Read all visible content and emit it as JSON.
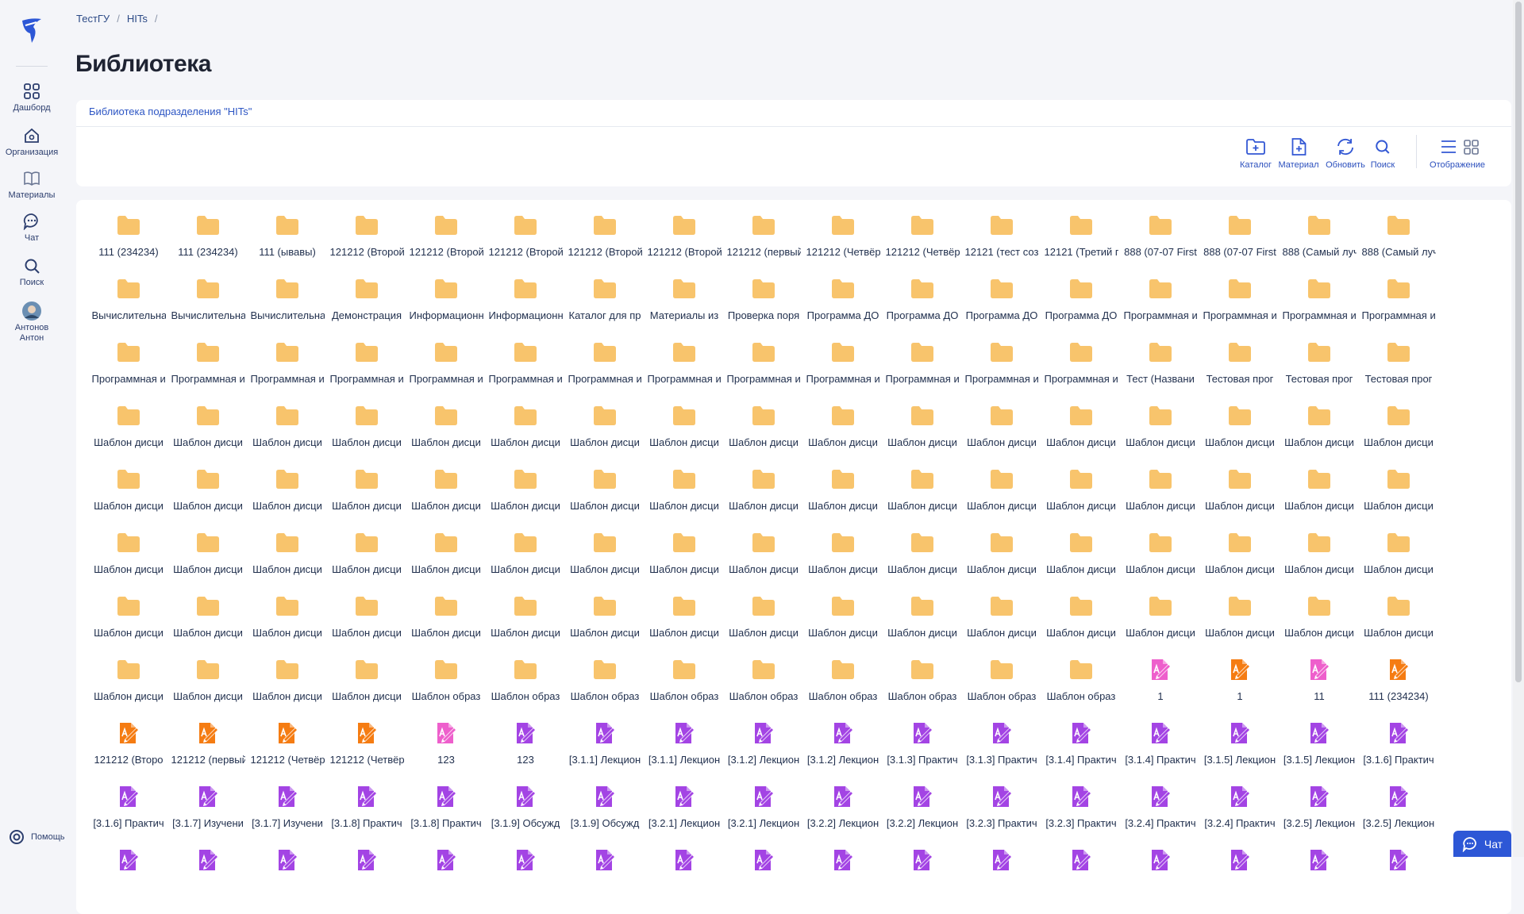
{
  "sidebar": {
    "nav": [
      "Дашборд",
      "Организация",
      "Материалы",
      "Чат",
      "Поиск"
    ],
    "user": [
      "Антонов",
      "Антон"
    ],
    "help": "Помощь"
  },
  "breadcrumbs": {
    "items": [
      "ТестГУ",
      "HITs"
    ],
    "separator": "/"
  },
  "header": {
    "title": "Библиотека"
  },
  "panel": {
    "tab": "Библиотека подразделения \"HITs\"",
    "toolbar": [
      "Каталог",
      "Материал",
      "Обновить",
      "Поиск"
    ],
    "view": "Отображение"
  },
  "icon_colors": {
    "folder": "#f8c46c",
    "p": "#f57c12",
    "d": "#ee5fcc",
    "az": "#a344e4"
  },
  "items": [
    {
      "kind": "folder",
      "label": "111 (234234)"
    },
    {
      "kind": "folder",
      "label": "111 (234234)"
    },
    {
      "kind": "folder",
      "label": "111 (ывавы)"
    },
    {
      "kind": "folder",
      "label": "121212 (Второй"
    },
    {
      "kind": "folder",
      "label": "121212 (Второй"
    },
    {
      "kind": "folder",
      "label": "121212 (Второй"
    },
    {
      "kind": "folder",
      "label": "121212 (Второй"
    },
    {
      "kind": "folder",
      "label": "121212 (Второй"
    },
    {
      "kind": "folder",
      "label": "121212 (первый"
    },
    {
      "kind": "folder",
      "label": "121212 (Четвёр"
    },
    {
      "kind": "folder",
      "label": "121212 (Четвёр"
    },
    {
      "kind": "folder",
      "label": "12121 (тест соз"
    },
    {
      "kind": "folder",
      "label": "12121 (Третий г"
    },
    {
      "kind": "folder",
      "label": "888 (07-07 First"
    },
    {
      "kind": "folder",
      "label": "888 (07-07 First"
    },
    {
      "kind": "folder",
      "label": "888 (Самый луч"
    },
    {
      "kind": "folder",
      "label": "888 (Самый луч"
    },
    {
      "kind": "folder",
      "label": "Вычислительна"
    },
    {
      "kind": "folder",
      "label": "Вычислительна"
    },
    {
      "kind": "folder",
      "label": "Вычислительна"
    },
    {
      "kind": "folder",
      "label": "Демонстрация"
    },
    {
      "kind": "folder",
      "label": "Информационн"
    },
    {
      "kind": "folder",
      "label": "Информационн"
    },
    {
      "kind": "folder",
      "label": "Каталог для пр"
    },
    {
      "kind": "folder",
      "label": "Материалы из"
    },
    {
      "kind": "folder",
      "label": "Проверка поря"
    },
    {
      "kind": "folder",
      "label": "Программа ДО"
    },
    {
      "kind": "folder",
      "label": "Программа ДО"
    },
    {
      "kind": "folder",
      "label": "Программа ДО"
    },
    {
      "kind": "folder",
      "label": "Программа ДО"
    },
    {
      "kind": "folder",
      "label": "Программная и"
    },
    {
      "kind": "folder",
      "label": "Программная и"
    },
    {
      "kind": "folder",
      "label": "Программная и"
    },
    {
      "kind": "folder",
      "label": "Программная и"
    },
    {
      "kind": "folder",
      "label": "Программная и"
    },
    {
      "kind": "folder",
      "label": "Программная и"
    },
    {
      "kind": "folder",
      "label": "Программная и"
    },
    {
      "kind": "folder",
      "label": "Программная и"
    },
    {
      "kind": "folder",
      "label": "Программная и"
    },
    {
      "kind": "folder",
      "label": "Программная и"
    },
    {
      "kind": "folder",
      "label": "Программная и"
    },
    {
      "kind": "folder",
      "label": "Программная и"
    },
    {
      "kind": "folder",
      "label": "Программная и"
    },
    {
      "kind": "folder",
      "label": "Программная и"
    },
    {
      "kind": "folder",
      "label": "Программная и"
    },
    {
      "kind": "folder",
      "label": "Программная и"
    },
    {
      "kind": "folder",
      "label": "Программная и"
    },
    {
      "kind": "folder",
      "label": "Тест (Названи"
    },
    {
      "kind": "folder",
      "label": "Тестовая прог"
    },
    {
      "kind": "folder",
      "label": "Тестовая прог"
    },
    {
      "kind": "folder",
      "label": "Тестовая прог"
    },
    {
      "kind": "folder",
      "label": "Шаблон дисци"
    },
    {
      "kind": "folder",
      "label": "Шаблон дисци"
    },
    {
      "kind": "folder",
      "label": "Шаблон дисци"
    },
    {
      "kind": "folder",
      "label": "Шаблон дисци"
    },
    {
      "kind": "folder",
      "label": "Шаблон дисци"
    },
    {
      "kind": "folder",
      "label": "Шаблон дисци"
    },
    {
      "kind": "folder",
      "label": "Шаблон дисци"
    },
    {
      "kind": "folder",
      "label": "Шаблон дисци"
    },
    {
      "kind": "folder",
      "label": "Шаблон дисци"
    },
    {
      "kind": "folder",
      "label": "Шаблон дисци"
    },
    {
      "kind": "folder",
      "label": "Шаблон дисци"
    },
    {
      "kind": "folder",
      "label": "Шаблон дисци"
    },
    {
      "kind": "folder",
      "label": "Шаблон дисци"
    },
    {
      "kind": "folder",
      "label": "Шаблон дисци"
    },
    {
      "kind": "folder",
      "label": "Шаблон дисци"
    },
    {
      "kind": "folder",
      "label": "Шаблон дисци"
    },
    {
      "kind": "folder",
      "label": "Шаблон дисци"
    },
    {
      "kind": "folder",
      "label": "Шаблон дисци"
    },
    {
      "kind": "folder",
      "label": "Шаблон дисци"
    },
    {
      "kind": "folder",
      "label": "Шаблон дисци"
    },
    {
      "kind": "folder",
      "label": "Шаблон дисци"
    },
    {
      "kind": "folder",
      "label": "Шаблон дисци"
    },
    {
      "kind": "folder",
      "label": "Шаблон дисци"
    },
    {
      "kind": "folder",
      "label": "Шаблон дисци"
    },
    {
      "kind": "folder",
      "label": "Шаблон дисци"
    },
    {
      "kind": "folder",
      "label": "Шаблон дисци"
    },
    {
      "kind": "folder",
      "label": "Шаблон дисци"
    },
    {
      "kind": "folder",
      "label": "Шаблон дисци"
    },
    {
      "kind": "folder",
      "label": "Шаблон дисци"
    },
    {
      "kind": "folder",
      "label": "Шаблон дисци"
    },
    {
      "kind": "folder",
      "label": "Шаблон дисци"
    },
    {
      "kind": "folder",
      "label": "Шаблон дисци"
    },
    {
      "kind": "folder",
      "label": "Шаблон дисци"
    },
    {
      "kind": "folder",
      "label": "Шаблон дисци"
    },
    {
      "kind": "folder",
      "label": "Шаблон дисци"
    },
    {
      "kind": "folder",
      "label": "Шаблон дисци"
    },
    {
      "kind": "folder",
      "label": "Шаблон дисци"
    },
    {
      "kind": "folder",
      "label": "Шаблон дисци"
    },
    {
      "kind": "folder",
      "label": "Шаблон дисци"
    },
    {
      "kind": "folder",
      "label": "Шаблон дисци"
    },
    {
      "kind": "folder",
      "label": "Шаблон дисци"
    },
    {
      "kind": "folder",
      "label": "Шаблон дисци"
    },
    {
      "kind": "folder",
      "label": "Шаблон дисци"
    },
    {
      "kind": "folder",
      "label": "Шаблон дисци"
    },
    {
      "kind": "folder",
      "label": "Шаблон дисци"
    },
    {
      "kind": "folder",
      "label": "Шаблон дисци"
    },
    {
      "kind": "folder",
      "label": "Шаблон дисци"
    },
    {
      "kind": "folder",
      "label": "Шаблон дисци"
    },
    {
      "kind": "folder",
      "label": "Шаблон дисци"
    },
    {
      "kind": "folder",
      "label": "Шаблон дисци"
    },
    {
      "kind": "folder",
      "label": "Шаблон дисци"
    },
    {
      "kind": "folder",
      "label": "Шаблон дисци"
    },
    {
      "kind": "folder",
      "label": "Шаблон дисци"
    },
    {
      "kind": "folder",
      "label": "Шаблон дисци"
    },
    {
      "kind": "folder",
      "label": "Шаблон дисци"
    },
    {
      "kind": "folder",
      "label": "Шаблон дисци"
    },
    {
      "kind": "folder",
      "label": "Шаблон дисци"
    },
    {
      "kind": "folder",
      "label": "Шаблон дисци"
    },
    {
      "kind": "folder",
      "label": "Шаблон дисци"
    },
    {
      "kind": "folder",
      "label": "Шаблон дисци"
    },
    {
      "kind": "folder",
      "label": "Шаблон дисци"
    },
    {
      "kind": "folder",
      "label": "Шаблон дисци"
    },
    {
      "kind": "folder",
      "label": "Шаблон дисци"
    },
    {
      "kind": "folder",
      "label": "Шаблон дисци"
    },
    {
      "kind": "folder",
      "label": "Шаблон дисци"
    },
    {
      "kind": "folder",
      "label": "Шаблон дисци"
    },
    {
      "kind": "folder",
      "label": "Шаблон дисци"
    },
    {
      "kind": "folder",
      "label": "Шаблон дисци"
    },
    {
      "kind": "folder",
      "label": "Шаблон дисци"
    },
    {
      "kind": "folder",
      "label": "Шаблон дисци"
    },
    {
      "kind": "folder",
      "label": "Шаблон дисци"
    },
    {
      "kind": "folder",
      "label": "Шаблон дисци"
    },
    {
      "kind": "folder",
      "label": "Шаблон образ"
    },
    {
      "kind": "folder",
      "label": "Шаблон образ"
    },
    {
      "kind": "folder",
      "label": "Шаблон образ"
    },
    {
      "kind": "folder",
      "label": "Шаблон образ"
    },
    {
      "kind": "folder",
      "label": "Шаблон образ"
    },
    {
      "kind": "folder",
      "label": "Шаблон образ"
    },
    {
      "kind": "folder",
      "label": "Шаблон образ"
    },
    {
      "kind": "folder",
      "label": "Шаблон образ"
    },
    {
      "kind": "folder",
      "label": "Шаблон образ"
    },
    {
      "kind": "d",
      "label": "1"
    },
    {
      "kind": "p",
      "label": "1"
    },
    {
      "kind": "d",
      "label": "11"
    },
    {
      "kind": "p",
      "label": "111 (234234)"
    },
    {
      "kind": "p",
      "label": "121212 (Второ"
    },
    {
      "kind": "p",
      "label": "121212 (первый"
    },
    {
      "kind": "p",
      "label": "121212 (Четвёр"
    },
    {
      "kind": "p",
      "label": "121212 (Четвёр"
    },
    {
      "kind": "d",
      "label": "123"
    },
    {
      "kind": "az",
      "label": "123"
    },
    {
      "kind": "az",
      "label": "[3.1.1] Лекцион"
    },
    {
      "kind": "az",
      "label": "[3.1.1] Лекцион"
    },
    {
      "kind": "az",
      "label": "[3.1.2] Лекцион"
    },
    {
      "kind": "az",
      "label": "[3.1.2] Лекцион"
    },
    {
      "kind": "az",
      "label": "[3.1.3] Практич"
    },
    {
      "kind": "az",
      "label": "[3.1.3] Практич"
    },
    {
      "kind": "az",
      "label": "[3.1.4] Практич"
    },
    {
      "kind": "az",
      "label": "[3.1.4] Практич"
    },
    {
      "kind": "az",
      "label": "[3.1.5] Лекцион"
    },
    {
      "kind": "az",
      "label": "[3.1.5] Лекцион"
    },
    {
      "kind": "az",
      "label": "[3.1.6] Практич"
    },
    {
      "kind": "az",
      "label": "[3.1.6] Практич"
    },
    {
      "kind": "az",
      "label": "[3.1.7] Изучени"
    },
    {
      "kind": "az",
      "label": "[3.1.7] Изучени"
    },
    {
      "kind": "az",
      "label": "[3.1.8] Практич"
    },
    {
      "kind": "az",
      "label": "[3.1.8] Практич"
    },
    {
      "kind": "az",
      "label": "[3.1.9] Обсужд"
    },
    {
      "kind": "az",
      "label": "[3.1.9] Обсужд"
    },
    {
      "kind": "az",
      "label": "[3.2.1] Лекцион"
    },
    {
      "kind": "az",
      "label": "[3.2.1] Лекцион"
    },
    {
      "kind": "az",
      "label": "[3.2.2] Лекцион"
    },
    {
      "kind": "az",
      "label": "[3.2.2] Лекцион"
    },
    {
      "kind": "az",
      "label": "[3.2.3] Практич"
    },
    {
      "kind": "az",
      "label": "[3.2.3] Практич"
    },
    {
      "kind": "az",
      "label": "[3.2.4] Практич"
    },
    {
      "kind": "az",
      "label": "[3.2.4] Практич"
    },
    {
      "kind": "az",
      "label": "[3.2.5] Лекцион"
    },
    {
      "kind": "az",
      "label": "[3.2.5] Лекцион"
    },
    {
      "kind": "az"
    },
    {
      "kind": "az"
    },
    {
      "kind": "az"
    },
    {
      "kind": "az"
    },
    {
      "kind": "az"
    },
    {
      "kind": "az"
    },
    {
      "kind": "az"
    },
    {
      "kind": "az"
    },
    {
      "kind": "az"
    },
    {
      "kind": "az"
    },
    {
      "kind": "az"
    },
    {
      "kind": "az"
    },
    {
      "kind": "az"
    },
    {
      "kind": "az"
    },
    {
      "kind": "az"
    },
    {
      "kind": "az"
    },
    {
      "kind": "az"
    }
  ],
  "chat": "Чат"
}
